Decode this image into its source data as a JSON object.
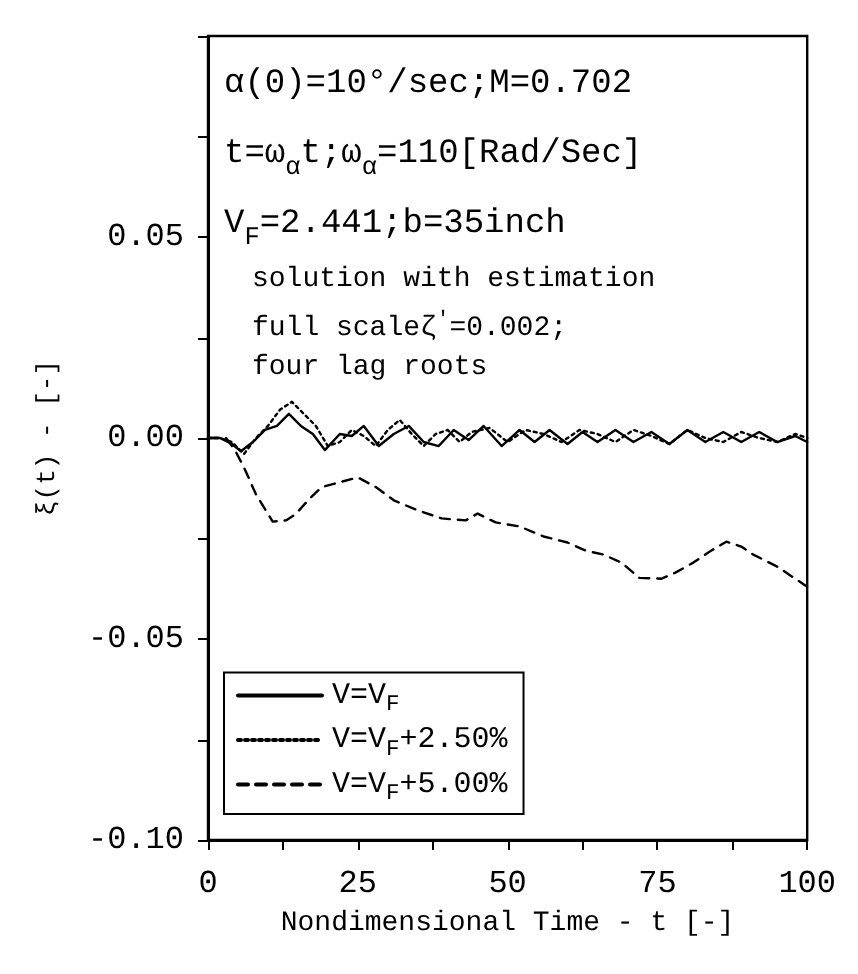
{
  "chart_data": {
    "type": "line",
    "xlabel": "Nondimensional Time - t [-]",
    "ylabel": "ξ(t) - [-]",
    "annotations": [
      "α(0)=10°/sec;M=0.702",
      "t=ω$_{α}$t;ω$_{α}$=110[Rad/Sec]",
      "V$_{F}$=2.441;b=35inch",
      "solution with estimation",
      "full scaleζ$^{'}$=0.002;",
      "four lag roots"
    ],
    "xlim": [
      0,
      100
    ],
    "xticks": [
      0,
      {
        "value": 12.5,
        "label": null
      },
      25,
      {
        "value": 37.5,
        "label": null
      },
      50,
      {
        "value": 62.5,
        "label": null
      },
      75,
      {
        "value": 87.5,
        "label": null
      },
      100
    ],
    "ylim": [
      -0.1,
      0.1
    ],
    "yticks": [
      {
        "value": -0.1,
        "label": "-0.10"
      },
      {
        "value": -0.075,
        "label": null
      },
      -0.05,
      {
        "value": -0.025,
        "label": null
      },
      {
        "value": 0,
        "label": "0.00"
      },
      {
        "value": 0.025,
        "label": null
      },
      0.05,
      {
        "value": 0.075,
        "label": null
      },
      {
        "value": 0.1,
        "label": null
      }
    ],
    "grid": false,
    "legend": "bottom left",
    "marker": "none",
    "series": [
      {
        "name": "V=V$_{F}$",
        "color": "#000000",
        "line_style": "solid",
        "x": [
          0,
          2,
          4,
          5.5,
          7.5,
          9.5,
          11.5,
          13.5,
          15.5,
          17.5,
          19.5,
          22,
          24,
          26,
          28.5,
          31,
          33.5,
          36,
          38.5,
          41,
          43.5,
          46,
          49,
          52,
          54.5,
          57,
          60,
          62.5,
          65,
          68,
          71,
          74,
          77,
          80,
          83,
          86,
          89,
          92,
          95,
          98,
          100
        ],
        "values": [
          0,
          0,
          -0.0015,
          -0.0033,
          -0.001,
          0.002,
          0.003,
          0.006,
          0.003,
          0.001,
          -0.003,
          0.001,
          0.0005,
          0.003,
          -0.002,
          0.001,
          0.003,
          -0.001,
          -0.002,
          0.002,
          -0.0005,
          0.003,
          -0.002,
          0.002,
          -0.001,
          0.002,
          -0.0015,
          0.0015,
          -0.001,
          0.002,
          -0.001,
          0.0015,
          -0.0015,
          0.002,
          -0.001,
          0.0015,
          -0.001,
          0.0015,
          -0.001,
          0.0005,
          -0.001
        ]
      },
      {
        "name": "V=V$_{F}$+2.50%",
        "color": "#000000",
        "line_style": "dotted",
        "x": [
          0,
          2,
          4,
          6,
          8,
          10,
          12,
          14,
          16,
          18,
          20,
          22,
          24,
          26,
          28,
          30,
          32,
          34,
          36,
          38,
          40,
          42,
          44,
          47,
          50,
          53,
          56,
          59,
          62,
          65,
          68,
          71,
          74,
          77,
          80,
          83,
          86,
          89,
          92,
          95,
          98,
          100
        ],
        "values": [
          0,
          0,
          -0.001,
          -0.004,
          0,
          0.003,
          0.007,
          0.009,
          0.006,
          0.003,
          -0.002,
          -0.001,
          0.002,
          0.0005,
          -0.002,
          0.002,
          0.0045,
          0.001,
          -0.002,
          0.001,
          0.002,
          -0.001,
          0.0015,
          0.0025,
          -0.001,
          0.002,
          0.001,
          -0.001,
          0.002,
          0.001,
          -0.001,
          0.002,
          0.0005,
          -0.0015,
          0.002,
          0,
          -0.001,
          0.0015,
          0,
          -0.001,
          0.001,
          0
        ]
      },
      {
        "name": "V=V$_{F}$+5.00%",
        "color": "#000000",
        "line_style": "dashed",
        "x": [
          0,
          3,
          4.5,
          6,
          8,
          10.8,
          13,
          14.6,
          17,
          19,
          22,
          25,
          28,
          31,
          35,
          39,
          43,
          45,
          48,
          52,
          56,
          60,
          63,
          66,
          69,
          72,
          75.7,
          78,
          81,
          84,
          86.5,
          89,
          91,
          95,
          97,
          100
        ],
        "values": [
          0,
          0,
          -0.003,
          -0.0073,
          -0.014,
          -0.0208,
          -0.0205,
          -0.019,
          -0.015,
          -0.0122,
          -0.011,
          -0.0098,
          -0.0122,
          -0.0155,
          -0.018,
          -0.02,
          -0.0205,
          -0.0188,
          -0.021,
          -0.022,
          -0.0245,
          -0.026,
          -0.028,
          -0.029,
          -0.031,
          -0.0348,
          -0.035,
          -0.0335,
          -0.031,
          -0.028,
          -0.0258,
          -0.027,
          -0.029,
          -0.032,
          -0.034,
          -0.037
        ]
      }
    ]
  }
}
